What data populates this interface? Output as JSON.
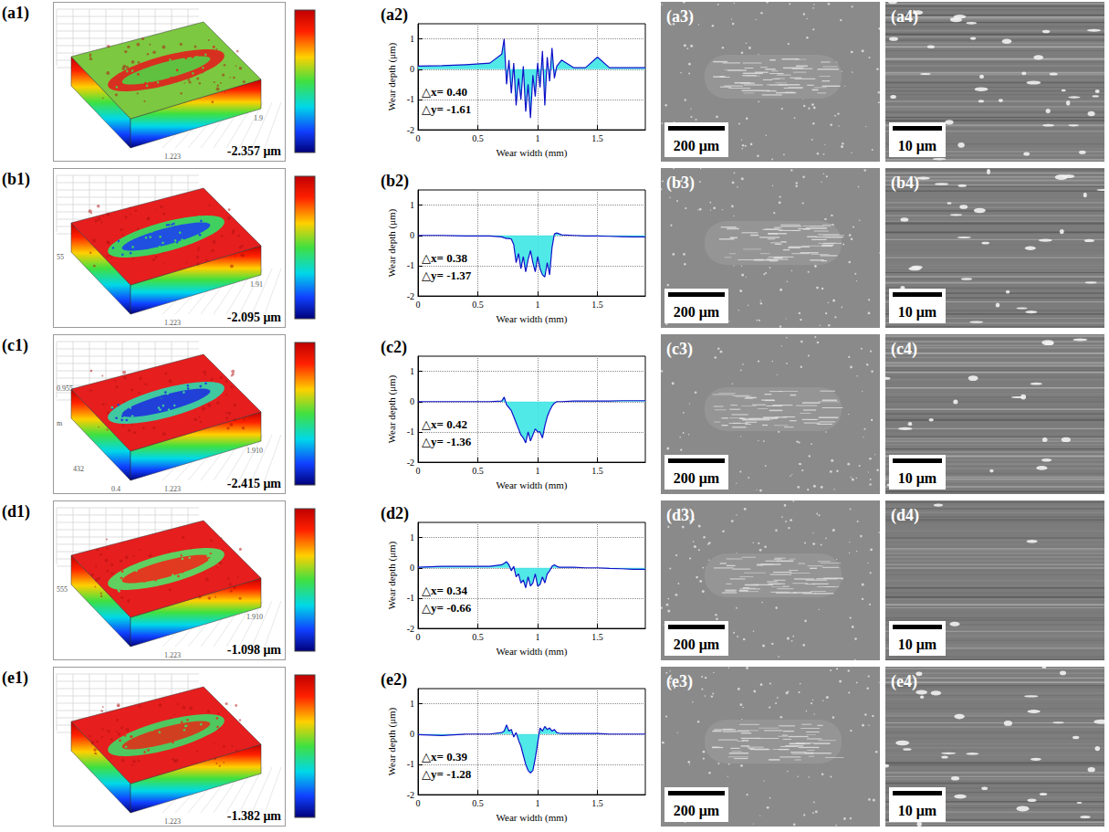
{
  "chart_data": [
    {
      "type": "line",
      "title": "(a2)",
      "x_label": "Wear width (mm)",
      "y_label": "Wear depth (μm)",
      "x": [
        0,
        0.2,
        0.4,
        0.6,
        0.7,
        0.72,
        0.74,
        0.76,
        0.78,
        0.8,
        0.82,
        0.84,
        0.86,
        0.88,
        0.9,
        0.92,
        0.94,
        0.96,
        0.98,
        1.0,
        1.02,
        1.04,
        1.06,
        1.08,
        1.1,
        1.12,
        1.14,
        1.16,
        1.18,
        1.2,
        1.3,
        1.4,
        1.5,
        1.6,
        1.7,
        1.8,
        1.9
      ],
      "values": [
        0.1,
        0.12,
        0.15,
        0.2,
        0.5,
        1.0,
        -0.5,
        0.3,
        -0.8,
        0.2,
        -1.2,
        -0.3,
        -1.0,
        0.1,
        -1.4,
        -0.5,
        -1.61,
        -0.2,
        -0.9,
        0.2,
        -0.6,
        0.6,
        -1.2,
        0.4,
        -0.4,
        0.7,
        -0.3,
        0.1,
        0.2,
        0.3,
        0.05,
        0.05,
        0.4,
        0.05,
        0.05,
        0.05,
        0.05
      ],
      "color": "#1010c8",
      "xlim": [
        0,
        1.9
      ],
      "xticks": [
        0,
        0.5,
        1,
        1.5
      ],
      "ylim": [
        -2,
        1.5
      ],
      "yticks": [
        -2,
        -1,
        0,
        1
      ],
      "grid": true,
      "annotations": [
        "△x= 0.40",
        "△y= -1.61"
      ]
    },
    {
      "type": "line",
      "title": "(b2)",
      "x_label": "Wear width (mm)",
      "y_label": "Wear depth (μm)",
      "x": [
        0,
        0.2,
        0.4,
        0.6,
        0.7,
        0.72,
        0.74,
        0.76,
        0.78,
        0.8,
        0.82,
        0.84,
        0.86,
        0.88,
        0.9,
        0.92,
        0.94,
        0.96,
        0.98,
        1.0,
        1.02,
        1.04,
        1.06,
        1.08,
        1.1,
        1.12,
        1.14,
        1.16,
        1.18,
        1.2,
        1.3,
        1.4,
        1.5,
        1.6,
        1.7,
        1.8,
        1.9
      ],
      "values": [
        0,
        0,
        -0.02,
        -0.02,
        -0.05,
        -0.08,
        -0.1,
        -0.1,
        -0.12,
        -0.3,
        -0.9,
        -0.6,
        -1.1,
        -0.7,
        -1.2,
        -0.8,
        -0.5,
        -0.9,
        -1.2,
        -0.7,
        -1.1,
        -1.3,
        -1.37,
        -0.9,
        -1.3,
        -0.4,
        0.05,
        0.08,
        0.05,
        0.02,
        0,
        -0.02,
        -0.02,
        -0.03,
        -0.04,
        -0.05,
        -0.05
      ],
      "color": "#1010c8",
      "xlim": [
        0,
        1.9
      ],
      "xticks": [
        0,
        0.5,
        1,
        1.5
      ],
      "ylim": [
        -2,
        1.5
      ],
      "yticks": [
        -2,
        -1,
        0,
        1
      ],
      "grid": true,
      "annotations": [
        "△x= 0.38",
        "△y= -1.37"
      ]
    },
    {
      "type": "line",
      "title": "(c2)",
      "x_label": "Wear width (mm)",
      "y_label": "Wear depth (μm)",
      "x": [
        0,
        0.2,
        0.4,
        0.6,
        0.7,
        0.72,
        0.74,
        0.76,
        0.78,
        0.8,
        0.82,
        0.84,
        0.86,
        0.88,
        0.9,
        0.92,
        0.94,
        0.96,
        0.98,
        1.0,
        1.02,
        1.04,
        1.06,
        1.08,
        1.1,
        1.12,
        1.14,
        1.16,
        1.18,
        1.2,
        1.3,
        1.4,
        1.5,
        1.6,
        1.7,
        1.8,
        1.9
      ],
      "values": [
        0,
        0,
        0,
        0,
        0.02,
        0.15,
        -0.1,
        -0.2,
        -0.3,
        -0.5,
        -0.7,
        -0.9,
        -1.1,
        -1.2,
        -1.36,
        -1.0,
        -1.3,
        -1.1,
        -0.9,
        -1.0,
        -1.0,
        -1.2,
        -0.8,
        -0.5,
        -0.3,
        -0.15,
        -0.05,
        0,
        0,
        0,
        0.02,
        0.02,
        0.02,
        0.02,
        0.03,
        0.03,
        0.03
      ],
      "color": "#1010c8",
      "xlim": [
        0,
        1.9
      ],
      "xticks": [
        0,
        0.5,
        1,
        1.5
      ],
      "ylim": [
        -2,
        1.5
      ],
      "yticks": [
        -2,
        -1,
        0,
        1
      ],
      "grid": true,
      "annotations": [
        "△x= 0.42",
        "△y= -1.36"
      ]
    },
    {
      "type": "line",
      "title": "(d2)",
      "x_label": "Wear width (mm)",
      "y_label": "Wear depth (μm)",
      "x": [
        0,
        0.2,
        0.4,
        0.6,
        0.7,
        0.72,
        0.74,
        0.76,
        0.78,
        0.8,
        0.82,
        0.84,
        0.86,
        0.88,
        0.9,
        0.92,
        0.94,
        0.96,
        0.98,
        1.0,
        1.02,
        1.04,
        1.06,
        1.08,
        1.1,
        1.12,
        1.14,
        1.16,
        1.18,
        1.2,
        1.3,
        1.4,
        1.5,
        1.6,
        1.7,
        1.8,
        1.9
      ],
      "values": [
        0.02,
        0.05,
        0.05,
        0.05,
        0.1,
        0.15,
        0.2,
        0.1,
        -0.1,
        0.05,
        -0.3,
        -0.2,
        -0.5,
        -0.4,
        -0.66,
        -0.3,
        -0.6,
        -0.5,
        -0.2,
        -0.6,
        -0.55,
        -0.3,
        -0.5,
        -0.2,
        -0.1,
        0.05,
        0.1,
        0.05,
        0.02,
        0.02,
        0.02,
        0,
        0,
        -0.02,
        -0.03,
        -0.05,
        -0.05
      ],
      "color": "#1010c8",
      "xlim": [
        0,
        1.9
      ],
      "xticks": [
        0,
        0.5,
        1,
        1.5
      ],
      "ylim": [
        -2,
        1.5
      ],
      "yticks": [
        -2,
        -1,
        0,
        1
      ],
      "grid": true,
      "annotations": [
        "△x= 0.34",
        "△y= -0.66"
      ]
    },
    {
      "type": "line",
      "title": "(e2)",
      "x_label": "Wear width (mm)",
      "y_label": "Wear depth (μm)",
      "x": [
        0,
        0.2,
        0.4,
        0.6,
        0.7,
        0.72,
        0.74,
        0.76,
        0.78,
        0.8,
        0.82,
        0.84,
        0.86,
        0.88,
        0.9,
        0.92,
        0.94,
        0.96,
        0.98,
        1.0,
        1.02,
        1.04,
        1.06,
        1.08,
        1.1,
        1.12,
        1.14,
        1.16,
        1.18,
        1.2,
        1.3,
        1.4,
        1.5,
        1.6,
        1.7,
        1.8,
        1.9
      ],
      "values": [
        -0.02,
        -0.05,
        0,
        0,
        0.05,
        0.1,
        0.3,
        0.1,
        0.15,
        -0.1,
        0.05,
        -0.2,
        -0.4,
        -0.7,
        -1.0,
        -1.2,
        -1.28,
        -1.2,
        -0.8,
        -0.3,
        0.2,
        0.1,
        0.25,
        0.15,
        0.2,
        0.1,
        0.15,
        0.05,
        0.03,
        0.02,
        0.02,
        0.02,
        0.02,
        0,
        0,
        0,
        0
      ],
      "color": "#1010c8",
      "xlim": [
        0,
        1.9
      ],
      "xticks": [
        0,
        0.5,
        1,
        1.5
      ],
      "ylim": [
        -2,
        1.5
      ],
      "yticks": [
        -2,
        -1,
        0,
        1
      ],
      "grid": true,
      "annotations": [
        "△x= 0.39",
        "△y= -1.28"
      ]
    }
  ],
  "surface_maps": [
    {
      "label": "(a1)",
      "depth_label": "-2.357 μm",
      "axis_texts": [
        "1.223",
        "1.9"
      ]
    },
    {
      "label": "(b1)",
      "depth_label": "-2.095 μm",
      "axis_texts": [
        "1.223",
        "1.91",
        "55"
      ]
    },
    {
      "label": "(c1)",
      "depth_label": "-2.415 μm",
      "axis_texts": [
        "1.223",
        "1.910",
        "m",
        "432",
        "0.955",
        "0.4"
      ]
    },
    {
      "label": "(d1)",
      "depth_label": "-1.098 μm",
      "axis_texts": [
        "1.223",
        "1.910",
        "555"
      ]
    },
    {
      "label": "(e1)",
      "depth_label": "-1.382 μm",
      "axis_texts": [
        "1.223"
      ]
    }
  ],
  "sem_low": [
    {
      "label": "(a3)",
      "scale_bar": "200 μm"
    },
    {
      "label": "(b3)",
      "scale_bar": "200 μm"
    },
    {
      "label": "(c3)",
      "scale_bar": "200 μm"
    },
    {
      "label": "(d3)",
      "scale_bar": "200 μm"
    },
    {
      "label": "(e3)",
      "scale_bar": "200 μm"
    }
  ],
  "sem_high": [
    {
      "label": "(a4)",
      "scale_bar": "10 μm"
    },
    {
      "label": "(b4)",
      "scale_bar": "10 μm"
    },
    {
      "label": "(c4)",
      "scale_bar": "10 μm"
    },
    {
      "label": "(d4)",
      "scale_bar": "10 μm"
    },
    {
      "label": "(e4)",
      "scale_bar": "10 μm"
    }
  ]
}
